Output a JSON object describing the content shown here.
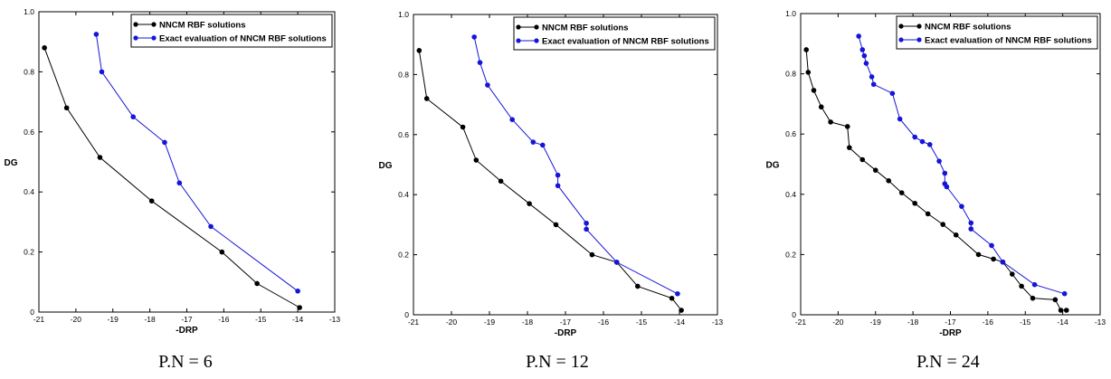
{
  "colors": {
    "series_black": "#000000",
    "series_blue": "#1515d8"
  },
  "chart_data": [
    {
      "type": "line",
      "xlabel": "-DRP",
      "ylabel": "DG",
      "xlim": [
        -21,
        -13
      ],
      "ylim": [
        0,
        1.0
      ],
      "xticks": [
        "-21",
        "-20",
        "-19",
        "-18",
        "-17",
        "-16",
        "-15",
        "-14",
        "-13"
      ],
      "yticks": [
        "0",
        "0.2",
        "0.4",
        "0.6",
        "0.8",
        "1.0"
      ],
      "legend_position": "top-right",
      "caption": "P.N = 6",
      "series": [
        {
          "name": "NNCM RBF solutions",
          "color": "#000000",
          "points": [
            [
              -20.85,
              0.88
            ],
            [
              -20.25,
              0.68
            ],
            [
              -19.35,
              0.515
            ],
            [
              -17.95,
              0.37
            ],
            [
              -16.05,
              0.2
            ],
            [
              -15.1,
              0.095
            ],
            [
              -13.95,
              0.015
            ]
          ]
        },
        {
          "name": "Exact evaluation of NNCM RBF solutions",
          "color": "#1515d8",
          "points": [
            [
              -19.45,
              0.925
            ],
            [
              -19.3,
              0.8
            ],
            [
              -18.45,
              0.65
            ],
            [
              -17.6,
              0.565
            ],
            [
              -17.2,
              0.43
            ],
            [
              -16.35,
              0.285
            ],
            [
              -14.0,
              0.07
            ]
          ]
        }
      ]
    },
    {
      "type": "line",
      "xlabel": "-DRP",
      "ylabel": "DG",
      "xlim": [
        -21,
        -13
      ],
      "ylim": [
        0,
        1.0
      ],
      "xticks": [
        "-21",
        "-20",
        "-19",
        "-18",
        "-17",
        "-16",
        "-15",
        "-14",
        "-13"
      ],
      "yticks": [
        "0",
        "0.2",
        "0.4",
        "0.6",
        "0.8",
        "1.0"
      ],
      "legend_position": "top-right",
      "caption": "P.N = 12",
      "series": [
        {
          "name": "NNCM RBF solutions",
          "color": "#000000",
          "points": [
            [
              -20.85,
              0.88
            ],
            [
              -20.65,
              0.72
            ],
            [
              -19.7,
              0.625
            ],
            [
              -19.35,
              0.515
            ],
            [
              -18.7,
              0.445
            ],
            [
              -17.95,
              0.37
            ],
            [
              -17.25,
              0.3
            ],
            [
              -16.3,
              0.2
            ],
            [
              -15.65,
              0.175
            ],
            [
              -15.1,
              0.095
            ],
            [
              -14.2,
              0.055
            ],
            [
              -13.95,
              0.015
            ]
          ]
        },
        {
          "name": "Exact evaluation of NNCM RBF solutions",
          "color": "#1515d8",
          "points": [
            [
              -19.4,
              0.925
            ],
            [
              -19.25,
              0.84
            ],
            [
              -19.05,
              0.765
            ],
            [
              -18.4,
              0.65
            ],
            [
              -17.85,
              0.575
            ],
            [
              -17.6,
              0.565
            ],
            [
              -17.2,
              0.465
            ],
            [
              -17.2,
              0.43
            ],
            [
              -16.45,
              0.305
            ],
            [
              -16.45,
              0.285
            ],
            [
              -15.65,
              0.175
            ],
            [
              -14.05,
              0.07
            ]
          ]
        }
      ]
    },
    {
      "type": "line",
      "xlabel": "-DRP",
      "ylabel": "DG",
      "xlim": [
        -21,
        -13
      ],
      "ylim": [
        0,
        1.0
      ],
      "xticks": [
        "-21",
        "-20",
        "-19",
        "-18",
        "-17",
        "-16",
        "-15",
        "-14",
        "-13"
      ],
      "yticks": [
        "0",
        "0.2",
        "0.4",
        "0.6",
        "0.8",
        "1.0"
      ],
      "legend_position": "top-right",
      "caption": "P.N = 24",
      "series": [
        {
          "name": "NNCM RBF solutions",
          "color": "#000000",
          "points": [
            [
              -20.85,
              0.88
            ],
            [
              -20.8,
              0.805
            ],
            [
              -20.65,
              0.745
            ],
            [
              -20.45,
              0.69
            ],
            [
              -20.2,
              0.64
            ],
            [
              -19.75,
              0.625
            ],
            [
              -19.7,
              0.555
            ],
            [
              -19.35,
              0.515
            ],
            [
              -19.0,
              0.48
            ],
            [
              -18.65,
              0.445
            ],
            [
              -18.3,
              0.405
            ],
            [
              -17.95,
              0.37
            ],
            [
              -17.6,
              0.335
            ],
            [
              -17.2,
              0.3
            ],
            [
              -16.85,
              0.265
            ],
            [
              -16.25,
              0.2
            ],
            [
              -15.85,
              0.185
            ],
            [
              -15.6,
              0.175
            ],
            [
              -15.35,
              0.135
            ],
            [
              -15.1,
              0.095
            ],
            [
              -14.8,
              0.055
            ],
            [
              -14.2,
              0.05
            ],
            [
              -14.05,
              0.015
            ],
            [
              -13.9,
              0.015
            ]
          ]
        },
        {
          "name": "Exact evaluation of NNCM RBF solutions",
          "color": "#1515d8",
          "points": [
            [
              -19.45,
              0.925
            ],
            [
              -19.35,
              0.88
            ],
            [
              -19.3,
              0.86
            ],
            [
              -19.25,
              0.835
            ],
            [
              -19.1,
              0.79
            ],
            [
              -19.05,
              0.765
            ],
            [
              -18.55,
              0.735
            ],
            [
              -18.35,
              0.65
            ],
            [
              -17.95,
              0.59
            ],
            [
              -17.75,
              0.575
            ],
            [
              -17.55,
              0.565
            ],
            [
              -17.3,
              0.51
            ],
            [
              -17.15,
              0.47
            ],
            [
              -17.15,
              0.435
            ],
            [
              -17.1,
              0.425
            ],
            [
              -16.7,
              0.36
            ],
            [
              -16.45,
              0.305
            ],
            [
              -16.45,
              0.285
            ],
            [
              -15.9,
              0.23
            ],
            [
              -15.6,
              0.175
            ],
            [
              -14.75,
              0.1
            ],
            [
              -13.95,
              0.07
            ]
          ]
        }
      ]
    }
  ]
}
